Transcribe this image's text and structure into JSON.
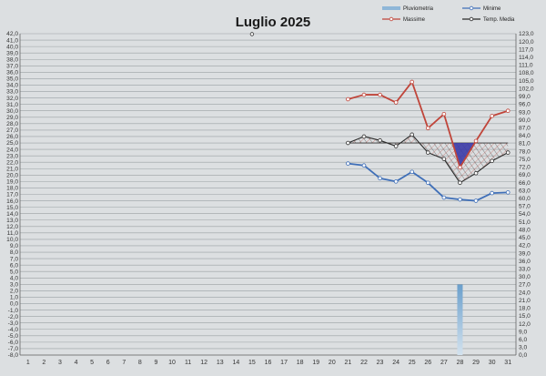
{
  "chart_data": {
    "type": "line",
    "title": "Luglio 2025",
    "legend": [
      {
        "name": "Pluviometria",
        "color": "#8fb7d8",
        "kind": "bar"
      },
      {
        "name": "Minime",
        "color": "#3f6fb8",
        "kind": "line"
      },
      {
        "name": "Massime",
        "color": "#c0453a",
        "kind": "line"
      },
      {
        "name": "Temp. Media",
        "color": "#2b2b2b",
        "kind": "line"
      }
    ],
    "legend_position": "top-right",
    "x": [
      1,
      2,
      3,
      4,
      5,
      6,
      7,
      8,
      9,
      10,
      11,
      12,
      13,
      14,
      15,
      16,
      17,
      18,
      19,
      20,
      21,
      22,
      23,
      24,
      25,
      26,
      27,
      28,
      29,
      30,
      31
    ],
    "y_left": {
      "min": -8,
      "max": 42,
      "step": 1
    },
    "y_right": {
      "min": 0,
      "max": 123,
      "step": 3
    },
    "grid": true,
    "series": [
      {
        "name": "Massime",
        "color": "#c0453a",
        "x": [
          21,
          22,
          23,
          24,
          25,
          26,
          27,
          28,
          29,
          30,
          31
        ],
        "y": [
          31.8,
          32.5,
          32.5,
          31.3,
          34.5,
          27.3,
          29.5,
          21.2,
          25.3,
          29.2,
          30.0
        ]
      },
      {
        "name": "Temp. Media",
        "color": "#2b2b2b",
        "x": [
          21,
          22,
          23,
          24,
          25,
          26,
          27,
          28,
          29,
          30,
          31
        ],
        "y": [
          25.0,
          26.0,
          25.4,
          24.5,
          26.3,
          23.5,
          22.5,
          18.8,
          20.3,
          22.2,
          23.5
        ]
      },
      {
        "name": "Minime",
        "color": "#3f6fb8",
        "x": [
          21,
          22,
          23,
          24,
          25,
          26,
          27,
          28,
          29,
          30,
          31
        ],
        "y": [
          21.8,
          21.5,
          19.5,
          19.0,
          20.5,
          18.8,
          16.5,
          16.2,
          16.0,
          17.2,
          17.3
        ]
      },
      {
        "name": "Pluviometria",
        "color": "#8fb7d8",
        "axis": "right",
        "type": "bar",
        "x": [
          28
        ],
        "y": [
          27.0
        ]
      }
    ],
    "reference_value": 25.0,
    "stray_point": {
      "x": 15,
      "y": 42
    }
  }
}
